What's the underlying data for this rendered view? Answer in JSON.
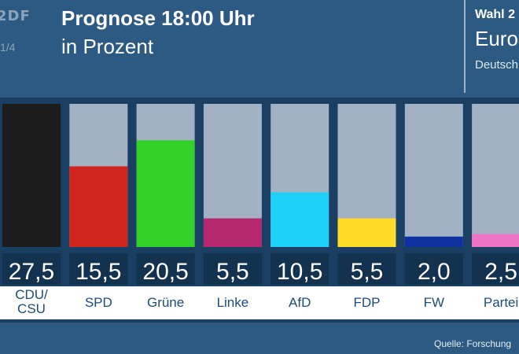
{
  "header": {
    "logo_text": "2DF",
    "page_indicator": "1/4",
    "title": "Prognose 18:00 Uhr",
    "subtitle": "in Prozent"
  },
  "side_panel": {
    "line1": "Wahl 2",
    "line2": "Euro",
    "line3": "Deutsch"
  },
  "source": "Quelle: Forschung",
  "chart_data": {
    "type": "bar",
    "categories": [
      "CDU/\nCSU",
      "SPD",
      "Grüne",
      "Linke",
      "AfD",
      "FDP",
      "FW",
      "Partei"
    ],
    "values": [
      27.5,
      15.5,
      20.5,
      5.5,
      10.5,
      5.5,
      2.0,
      2.5
    ],
    "value_labels": [
      "27,5",
      "15,5",
      "20,5",
      "5,5",
      "10,5",
      "5,5",
      "2,0",
      "2,5"
    ],
    "colors": [
      "#1c1c1c",
      "#d0251c",
      "#34d02a",
      "#b5276e",
      "#1ed0f8",
      "#ffdc28",
      "#0f30a0",
      "#ef73c4"
    ],
    "track_color": "#a2b2c4",
    "ylim": [
      0,
      27.5
    ]
  }
}
